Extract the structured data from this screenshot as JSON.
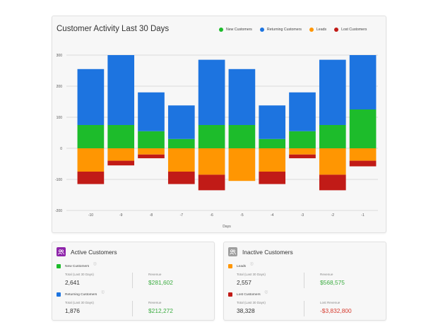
{
  "chart_card": {
    "title": "Customer Activity Last 30 Days",
    "legend": [
      {
        "label": "New Customers",
        "color": "#1dbc2b"
      },
      {
        "label": "Returning Customers",
        "color": "#1d74e0"
      },
      {
        "label": "Leads",
        "color": "#ff9602"
      },
      {
        "label": "Lost Customers",
        "color": "#c11b17"
      }
    ]
  },
  "chart_data": {
    "type": "bar",
    "stacked": true,
    "title": "Customer Activity Last 30 Days",
    "xlabel": "Days",
    "ylabel": "",
    "ylim": [
      -200,
      300
    ],
    "yticks": [
      300,
      200,
      100,
      0,
      -100,
      -200
    ],
    "grid": true,
    "legend_position": "top-right",
    "categories": [
      "-10",
      "-9",
      "-8",
      "-7",
      "-6",
      "-5",
      "-4",
      "-3",
      "-2",
      "-1"
    ],
    "series": [
      {
        "name": "New Customers",
        "color": "#1dbc2b",
        "values": [
          75,
          75,
          55,
          30,
          75,
          75,
          30,
          55,
          75,
          125
        ]
      },
      {
        "name": "Returning Customers",
        "color": "#1d74e0",
        "values": [
          180,
          225,
          125,
          108,
          210,
          180,
          108,
          125,
          210,
          175
        ]
      },
      {
        "name": "Leads",
        "color": "#ff9602",
        "values": [
          -75,
          -40,
          -20,
          -75,
          -85,
          -105,
          -75,
          -20,
          -85,
          -40
        ]
      },
      {
        "name": "Lost Customers",
        "color": "#c11b17",
        "values": [
          -40,
          -15,
          -12,
          -40,
          -50,
          0,
          -40,
          -12,
          -50,
          -18
        ]
      }
    ]
  },
  "active": {
    "title": "Active Customers",
    "icon_color": "#8e24aa",
    "metrics": [
      {
        "name": "New Customers",
        "color": "#1dbc2b",
        "total_label": "Total (Last 30 Days)",
        "total": "2,641",
        "revenue_label": "Revenue",
        "revenue": "$281,602",
        "revenue_class": "pos"
      },
      {
        "name": "Returning Customers",
        "color": "#1d74e0",
        "total_label": "Total (Last 30 Days)",
        "total": "1,876",
        "revenue_label": "Revenue",
        "revenue": "$212,272",
        "revenue_class": "pos"
      }
    ]
  },
  "inactive": {
    "title": "Inactive Customers",
    "icon_color": "#9e9e9e",
    "metrics": [
      {
        "name": "Leads",
        "color": "#ff9602",
        "total_label": "Total (Last 30 Days)",
        "total": "2,557",
        "revenue_label": "Revenue",
        "revenue": "$568,575",
        "revenue_class": "pos"
      },
      {
        "name": "Lost Customers",
        "color": "#c11b17",
        "total_label": "Total (Last 30 Days)",
        "total": "38,328",
        "revenue_label": "Lost Revenue",
        "revenue": "-$3,832,800",
        "revenue_class": "neg"
      }
    ]
  }
}
